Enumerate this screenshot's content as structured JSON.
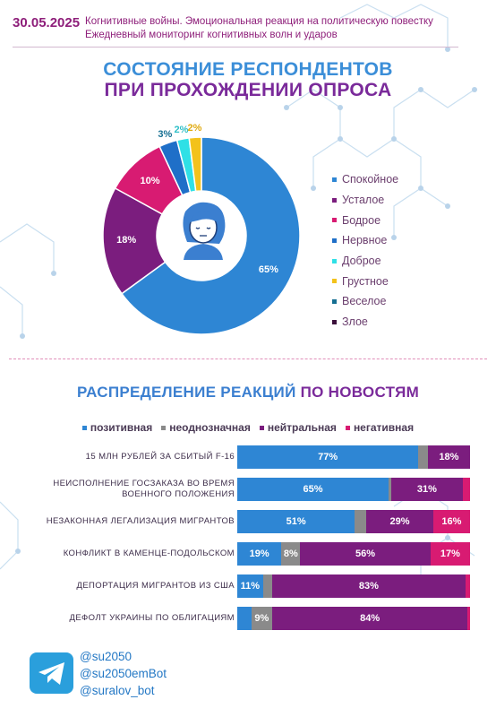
{
  "header": {
    "date": "30.05.2025",
    "line1": "Когнитивные войны. Эмоциональная реакция на политическую повестку",
    "line2": "Ежедневный мониторинг когнитивных волн и ударов"
  },
  "colors": {
    "blue": "#2e86d4",
    "purple": "#7b1d7e",
    "pink": "#d81b72",
    "gray": "#8a8a8a",
    "cyan": "#2fe0e6",
    "yellow": "#f3c21b",
    "teal": "#156f92",
    "dark": "#3a0f3a"
  },
  "chart_data": [
    {
      "type": "pie",
      "title": "СОСТОЯНИЕ РЕСПОНДЕНТОВ ПРИ ПРОХОЖДЕНИИ ОПРОСА",
      "title_line1": "СОСТОЯНИЕ РЕСПОНДЕНТОВ",
      "title_line2": "ПРИ ПРОХОЖДЕНИИ ОПРОСА",
      "labels": [
        "Спокойное",
        "Усталое",
        "Бодрое",
        "Нервное",
        "Доброе",
        "Грустное",
        "Веселое",
        "Злое"
      ],
      "values": [
        65,
        18,
        10,
        3,
        2,
        2,
        0,
        0
      ],
      "value_labels": [
        "65%",
        "18%",
        "10%",
        "3%",
        "2%",
        "2%",
        "",
        ""
      ],
      "colors": [
        "#2e86d4",
        "#7b1d7e",
        "#d81b72",
        "#1f6fc8",
        "#2fe0e6",
        "#f3c21b",
        "#156f92",
        "#3a0f3a"
      ],
      "legend_position": "right"
    },
    {
      "type": "bar",
      "stacked": true,
      "orientation": "horizontal",
      "title_part1": "РАСПРЕДЕЛЕНИЕ РЕАКЦИЙ ",
      "title_part2": "ПО НОВОСТЯМ",
      "legend_position": "top",
      "series_names": [
        "позитивная",
        "неоднозначная",
        "нейтральная",
        "негативная"
      ],
      "series_colors": [
        "#2e86d4",
        "#8a8a8a",
        "#7b1d7e",
        "#d81b72"
      ],
      "categories": [
        [
          "15 МЛН РУБЛЕЙ ЗА СБИТЫЙ F-16"
        ],
        [
          "НЕИСПОЛНЕНИЕ ГОСЗАКАЗА ВО ВРЕМЯ",
          "ВОЕННОГО ПОЛОЖЕНИЯ"
        ],
        [
          "НЕЗАКОННАЯ ЛЕГАЛИЗАЦИЯ МИГРАНТОВ"
        ],
        [
          "КОНФЛИКТ В КАМЕНЦЕ-ПОДОЛЬСКОМ"
        ],
        [
          "ДЕПОРТАЦИЯ МИГРАНТОВ ИЗ США"
        ],
        [
          "ДЕФОЛТ УКРАИНЫ ПО ОБЛИГАЦИЯМ"
        ]
      ],
      "rows": [
        {
          "values": [
            77,
            4,
            18,
            0
          ],
          "labels": [
            "77%",
            "",
            "18%",
            ""
          ]
        },
        {
          "values": [
            65,
            1,
            31,
            3
          ],
          "labels": [
            "65%",
            "",
            "31%",
            ""
          ]
        },
        {
          "values": [
            51,
            5,
            29,
            16
          ],
          "labels": [
            "51%",
            "",
            "29%",
            "16%"
          ]
        },
        {
          "values": [
            19,
            8,
            56,
            17
          ],
          "labels": [
            "19%",
            "8%",
            "56%",
            "17%"
          ]
        },
        {
          "values": [
            11,
            4,
            83,
            2
          ],
          "labels": [
            "11%",
            "",
            "83%",
            ""
          ]
        },
        {
          "values": [
            6,
            9,
            84,
            1
          ],
          "labels": [
            "",
            "9%",
            "84%",
            ""
          ]
        }
      ]
    }
  ],
  "footer": {
    "handles": [
      "@su2050",
      "@su2050emBot",
      "@suralov_bot"
    ]
  }
}
